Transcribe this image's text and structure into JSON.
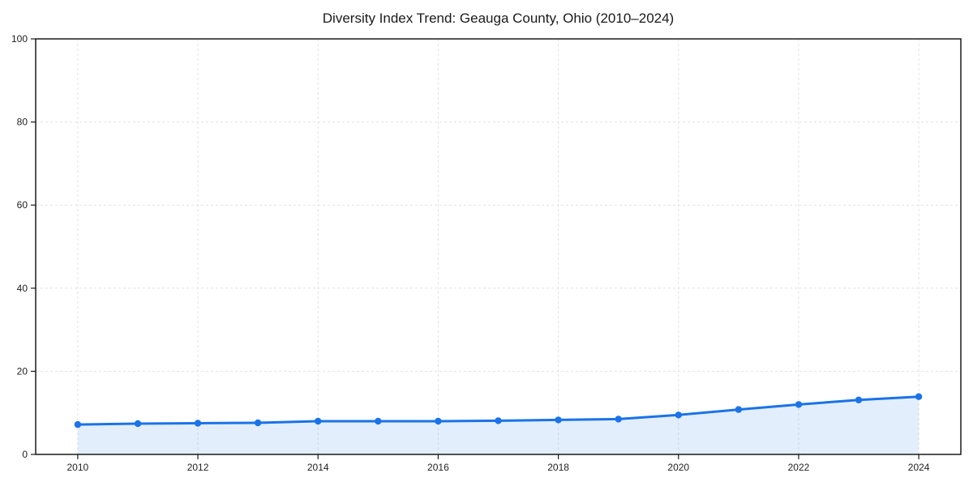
{
  "chart_data": {
    "type": "line",
    "title": "Diversity Index Trend: Geauga County, Ohio (2010–2024)",
    "xlabel": "",
    "ylabel": "",
    "x": [
      2010,
      2011,
      2012,
      2013,
      2014,
      2015,
      2016,
      2017,
      2018,
      2019,
      2020,
      2021,
      2022,
      2023,
      2024
    ],
    "series": [
      {
        "name": "Diversity Index",
        "values": [
          7.2,
          7.4,
          7.5,
          7.6,
          8.0,
          8.0,
          8.0,
          8.1,
          8.3,
          8.5,
          9.5,
          10.8,
          12.0,
          13.1,
          13.9
        ]
      }
    ],
    "xticks": [
      2010,
      2012,
      2014,
      2016,
      2018,
      2020,
      2022,
      2024
    ],
    "yticks": [
      0,
      20,
      40,
      60,
      80,
      100
    ],
    "xlim": [
      2009.3,
      2024.7
    ],
    "ylim": [
      0,
      100
    ],
    "grid": true,
    "grid_style": "dashed",
    "legend": "none",
    "colors": {
      "line": "#1a73e8",
      "marker": "#1a73e8",
      "area_fill": "rgba(26,115,232,0.12)",
      "grid": "#e2e2e2",
      "spine": "#1a1a1a",
      "tick_label": "#1f1f1f",
      "background": "#ffffff"
    }
  }
}
